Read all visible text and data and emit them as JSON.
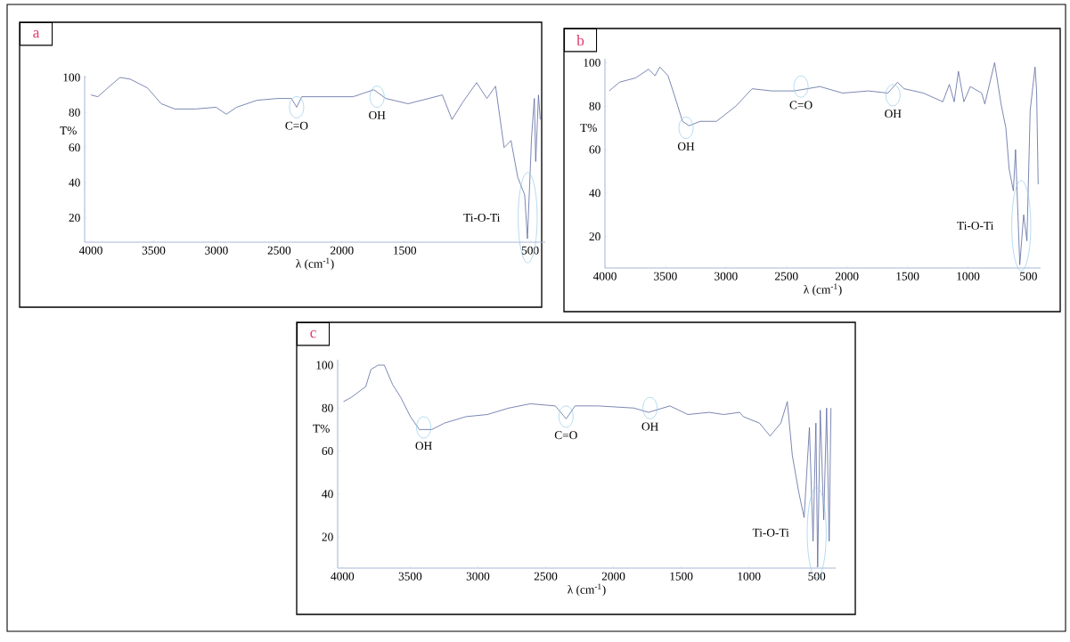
{
  "chart_data": [
    {
      "type": "line",
      "title": "a",
      "xlabel": "λ (cm$^{-1}$)",
      "ylabel": "T%",
      "xlim": [
        4050,
        380
      ],
      "ylim": [
        6,
        101
      ],
      "xticks": [
        4000,
        3500,
        3000,
        2500,
        2000,
        1500,
        500
      ],
      "yticks": [
        20,
        40,
        60,
        80,
        100
      ],
      "series": [
        {
          "color": "#5a6aa0",
          "x": [
            4000,
            3945,
            3850,
            3768,
            3686,
            3549,
            3440,
            3331,
            3167,
            3003,
            2921,
            2839,
            2675,
            2511,
            2402,
            2361,
            2320,
            2129,
            1910,
            1746,
            1650,
            1473,
            1309,
            1200,
            1123,
            1036,
            927,
            845,
            776,
            708,
            653,
            599,
            544,
            522,
            489,
            467,
            456,
            434,
            420
          ],
          "values": [
            90,
            89,
            95,
            100,
            99,
            94,
            85,
            82,
            82,
            83,
            79,
            83,
            87,
            88,
            88,
            83,
            89,
            89,
            89,
            93,
            88,
            85,
            88,
            90,
            76,
            86,
            97,
            88,
            95,
            60,
            64,
            43,
            33,
            8,
            66,
            88,
            52,
            90,
            76
          ]
        }
      ],
      "annotations": [
        {
          "text": "C=O",
          "x": 2361,
          "y": 83
        },
        {
          "text": "OH",
          "x": 1720,
          "y": 89
        },
        {
          "text": "Ti-O-Ti",
          "x": 520,
          "y": 20
        }
      ]
    },
    {
      "type": "line",
      "title": "b",
      "xlabel": "λ (cm$^{-1}$)",
      "ylabel": "T%",
      "xlim": [
        4000,
        400
      ],
      "ylim": [
        5.5,
        101.8
      ],
      "xticks": [
        4000,
        3500,
        3000,
        2500,
        2000,
        1500,
        1000,
        500
      ],
      "yticks": [
        20,
        40,
        60,
        80,
        100
      ],
      "series": [
        {
          "color": "#5a6aa0",
          "x": [
            3965,
            3880,
            3746,
            3639,
            3586,
            3546,
            3479,
            3426,
            3359,
            3305,
            3212,
            3078,
            2918,
            2784,
            2624,
            2437,
            2330,
            2223,
            2036,
            1822,
            1662,
            1582,
            1528,
            1368,
            1208,
            1154,
            1114,
            1079,
            1034,
            981,
            887,
            861,
            780,
            727,
            687,
            660,
            625,
            607,
            572,
            540,
            513,
            486,
            446,
            433,
            420
          ],
          "values": [
            87,
            91,
            93,
            97,
            94,
            98,
            94,
            85,
            73,
            71,
            73,
            73,
            80,
            88,
            87,
            87,
            88,
            89,
            86,
            87,
            86,
            91,
            88,
            86,
            82,
            90,
            82,
            96,
            82,
            89,
            86,
            81,
            100,
            81,
            70,
            51,
            41,
            60,
            7,
            30,
            18,
            78,
            98,
            87,
            44
          ]
        }
      ],
      "annotations": [
        {
          "text": "OH",
          "x": 3330,
          "y": 70
        },
        {
          "text": "C=O",
          "x": 2380,
          "y": 89
        },
        {
          "text": "OH",
          "x": 1620,
          "y": 85
        },
        {
          "text": "Ti-O-Ti",
          "x": 560,
          "y": 25
        }
      ]
    },
    {
      "type": "line",
      "title": "c",
      "xlabel": "λ (cm$^{-1}$)",
      "ylabel": "T%",
      "xlim": [
        4035,
        360
      ],
      "ylim": [
        5.5,
        102.5
      ],
      "xticks": [
        4000,
        3500,
        3000,
        2500,
        2000,
        1500,
        1000,
        500
      ],
      "yticks": [
        20,
        40,
        60,
        80,
        100
      ],
      "series": [
        {
          "color": "#5a6aa0",
          "x": [
            3992,
            3934,
            3828,
            3789,
            3736,
            3691,
            3630,
            3570,
            3498,
            3432,
            3340,
            3247,
            3089,
            2930,
            2772,
            2613,
            2429,
            2349,
            2283,
            2112,
            1848,
            1742,
            1583,
            1451,
            1293,
            1187,
            1069,
            1042,
            923,
            844,
            765,
            717,
            680,
            633,
            593,
            554,
            527,
            506,
            493,
            474,
            448,
            427,
            408,
            395
          ],
          "values": [
            83,
            85,
            90,
            98,
            100,
            100,
            91,
            85,
            76,
            70,
            70,
            73,
            76,
            77,
            80,
            82,
            81,
            75,
            81,
            81,
            80,
            78,
            81,
            77,
            78,
            77,
            78,
            76,
            73,
            67,
            73,
            83,
            58,
            41,
            29,
            71,
            18,
            73,
            6,
            79,
            28,
            80,
            18,
            80
          ]
        }
      ],
      "annotations": [
        {
          "text": "OH",
          "x": 3400,
          "y": 71
        },
        {
          "text": "C=O",
          "x": 2350,
          "y": 76
        },
        {
          "text": "OH",
          "x": 1730,
          "y": 80
        },
        {
          "text": "Ti-O-Ti",
          "x": 500,
          "y": 22
        }
      ]
    }
  ]
}
